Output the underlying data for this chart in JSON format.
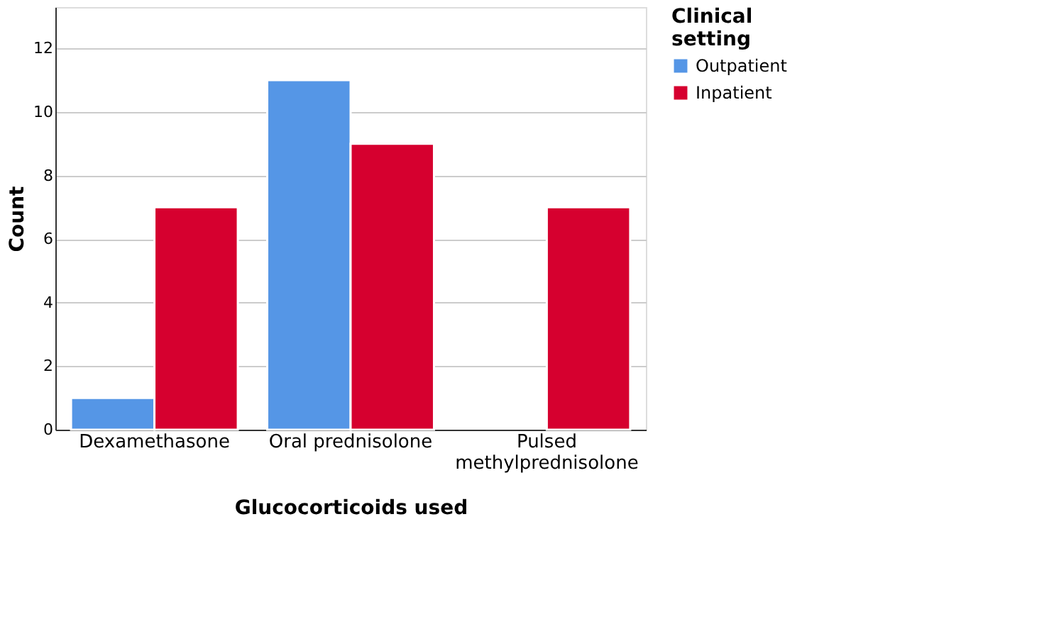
{
  "chart_data": {
    "type": "bar",
    "xlabel": "Glucocorticoids used",
    "ylabel": "Count",
    "legend_title": "Clinical setting",
    "categories": [
      "Dexamethasone",
      "Oral prednisolone",
      "Pulsed methylprednisolone"
    ],
    "series": [
      {
        "name": "Outpatient",
        "color": "#5596e6",
        "values": [
          1,
          11,
          null
        ]
      },
      {
        "name": "Inpatient",
        "color": "#d6002f",
        "values": [
          7,
          9,
          7
        ]
      }
    ],
    "ylim": [
      0,
      13.3
    ],
    "yticks": [
      0,
      2,
      4,
      6,
      8,
      10,
      12
    ],
    "grid": "y",
    "legend": "top right"
  }
}
